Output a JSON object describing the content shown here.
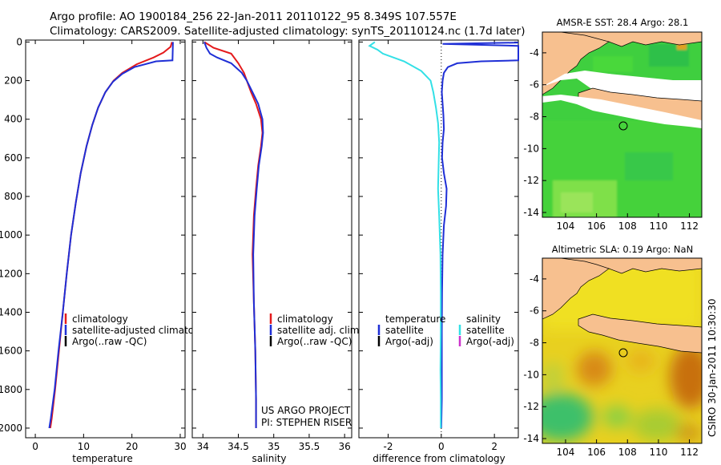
{
  "header": {
    "line1": "Argo profile: AO 1900184_256 22-Jan-2011 20110122_95 8.349S 107.557E",
    "line2": "Climatology: CARS2009. Satellite-adjusted climatology: synTS_20110124.nc (1.7d later)"
  },
  "colors": {
    "climatology": "#e41a1c",
    "satellite": "#1f2fd6",
    "argo": "#000000",
    "salinity_sat": "#33e0e6",
    "salinity_argo": "#cc33cc",
    "land": "#f7c08f"
  },
  "chart_data": [
    {
      "type": "line",
      "id": "temperature",
      "xlabel": "temperature",
      "xlim": [
        -2,
        31
      ],
      "ylim": [
        2050,
        -10
      ],
      "xticks": [
        "0",
        "10",
        "20",
        "30"
      ],
      "xtick_values": [
        0,
        10,
        20,
        30
      ],
      "yticks": [
        "0",
        "200",
        "400",
        "600",
        "800",
        "1000",
        "1200",
        "1400",
        "1600",
        "1800",
        "2000"
      ],
      "ytick_values": [
        0,
        200,
        400,
        600,
        800,
        1000,
        1200,
        1400,
        1600,
        1800,
        2000
      ],
      "legend": [
        "climatology",
        "satellite-adjusted climatology",
        "Argo(..raw -QC)"
      ],
      "series": [
        {
          "name": "climatology",
          "color": "#e41a1c",
          "points": [
            [
              28.3,
              0
            ],
            [
              28.0,
              25
            ],
            [
              26.5,
              55
            ],
            [
              24.5,
              80
            ],
            [
              21,
              115
            ],
            [
              18,
              160
            ],
            [
              16.2,
              200
            ],
            [
              14.5,
              260
            ],
            [
              13,
              340
            ],
            [
              11.8,
              430
            ],
            [
              10.6,
              540
            ],
            [
              9.4,
              680
            ],
            [
              8.4,
              830
            ],
            [
              7.4,
              1000
            ],
            [
              6.5,
              1200
            ],
            [
              5.7,
              1400
            ],
            [
              4.9,
              1600
            ],
            [
              4.1,
              1800
            ],
            [
              3.4,
              1950
            ],
            [
              3.1,
              2000
            ]
          ]
        },
        {
          "name": "satellite-adjusted climatology",
          "color": "#1f2fd6",
          "points": [
            [
              28.5,
              0
            ],
            [
              28.4,
              95
            ],
            [
              25,
              100
            ],
            [
              20.5,
              130
            ],
            [
              18,
              165
            ],
            [
              16.1,
              205
            ],
            [
              14.5,
              260
            ],
            [
              13,
              340
            ],
            [
              11.8,
              430
            ],
            [
              10.6,
              540
            ],
            [
              9.4,
              680
            ],
            [
              8.4,
              830
            ],
            [
              7.4,
              1000
            ],
            [
              6.5,
              1200
            ],
            [
              5.7,
              1400
            ],
            [
              4.8,
              1600
            ],
            [
              4.0,
              1800
            ],
            [
              3.2,
              1950
            ],
            [
              2.9,
              2000
            ]
          ]
        }
      ]
    },
    {
      "type": "line",
      "id": "salinity",
      "xlabel": "salinity",
      "xlim": [
        33.85,
        36.1
      ],
      "ylim": [
        2050,
        -10
      ],
      "xticks": [
        "34",
        "34.5",
        "35",
        "35.5",
        "36"
      ],
      "xtick_values": [
        34,
        34.5,
        35,
        35.5,
        36
      ],
      "legend": [
        "climatology",
        "satellite adj. clim.",
        "Argo(..raw -QC)"
      ],
      "annotations": [
        "US ARGO PROJECT",
        "PI: STEPHEN RISER"
      ],
      "series": [
        {
          "name": "climatology",
          "color": "#e41a1c",
          "points": [
            [
              34.02,
              0
            ],
            [
              34.15,
              30
            ],
            [
              34.4,
              60
            ],
            [
              34.5,
              110
            ],
            [
              34.58,
              160
            ],
            [
              34.62,
              200
            ],
            [
              34.68,
              260
            ],
            [
              34.75,
              320
            ],
            [
              34.82,
              400
            ],
            [
              34.84,
              470
            ],
            [
              34.82,
              540
            ],
            [
              34.78,
              640
            ],
            [
              34.75,
              760
            ],
            [
              34.72,
              900
            ],
            [
              34.7,
              1100
            ],
            [
              34.72,
              1350
            ],
            [
              34.74,
              1600
            ],
            [
              34.75,
              1850
            ],
            [
              34.75,
              2000
            ]
          ]
        },
        {
          "name": "satellite adj. clim.",
          "color": "#1f2fd6",
          "points": [
            [
              34.02,
              0
            ],
            [
              34.05,
              30
            ],
            [
              34.1,
              60
            ],
            [
              34.2,
              80
            ],
            [
              34.4,
              110
            ],
            [
              34.55,
              160
            ],
            [
              34.62,
              200
            ],
            [
              34.7,
              260
            ],
            [
              34.78,
              320
            ],
            [
              34.84,
              400
            ],
            [
              34.85,
              470
            ],
            [
              34.83,
              540
            ],
            [
              34.79,
              640
            ],
            [
              34.76,
              760
            ],
            [
              34.73,
              900
            ],
            [
              34.71,
              1100
            ],
            [
              34.72,
              1350
            ],
            [
              34.74,
              1600
            ],
            [
              34.75,
              1850
            ],
            [
              34.75,
              2000
            ]
          ]
        }
      ]
    },
    {
      "type": "line",
      "id": "difference",
      "xlabel": "difference from climatology",
      "xlim": [
        -3.1,
        2.9
      ],
      "ylim": [
        2050,
        -10
      ],
      "xticks": [
        "-2",
        "0",
        "2"
      ],
      "xtick_values": [
        -2,
        0,
        2
      ],
      "legend_header": [
        "temperature",
        "salinity"
      ],
      "legend_left": [
        "satellite",
        "Argo(-adj)"
      ],
      "legend_right": [
        "satellite",
        "Argo(-adj)"
      ],
      "series": [
        {
          "name": "temperature satellite",
          "color": "#1f2fd6",
          "points": [
            [
              2.9,
              3
            ],
            [
              0.05,
              10
            ],
            [
              2.9,
              20
            ],
            [
              2.9,
              95
            ],
            [
              1.5,
              100
            ],
            [
              0.6,
              110
            ],
            [
              0.25,
              130
            ],
            [
              0.1,
              160
            ],
            [
              0.05,
              200
            ],
            [
              0.02,
              260
            ],
            [
              0.05,
              320
            ],
            [
              0.08,
              380
            ],
            [
              0.1,
              450
            ],
            [
              0.05,
              520
            ],
            [
              0.03,
              600
            ],
            [
              0.1,
              680
            ],
            [
              0.2,
              760
            ],
            [
              0.18,
              850
            ],
            [
              0.1,
              950
            ],
            [
              0.05,
              1100
            ],
            [
              0.03,
              1300
            ],
            [
              0.02,
              1500
            ],
            [
              0.02,
              1700
            ],
            [
              0.02,
              1850
            ],
            [
              0.0,
              2000
            ]
          ]
        },
        {
          "name": "salinity satellite",
          "color": "#33e0e6",
          "points": [
            [
              -2.5,
              0
            ],
            [
              -2.7,
              20
            ],
            [
              -2.4,
              40
            ],
            [
              -2.2,
              60
            ],
            [
              -1.4,
              100
            ],
            [
              -0.75,
              150
            ],
            [
              -0.4,
              200
            ],
            [
              -0.3,
              260
            ],
            [
              -0.2,
              340
            ],
            [
              -0.12,
              420
            ],
            [
              -0.08,
              520
            ],
            [
              -0.1,
              640
            ],
            [
              -0.12,
              760
            ],
            [
              -0.08,
              900
            ],
            [
              -0.03,
              1100
            ],
            [
              -0.02,
              1300
            ],
            [
              -0.02,
              1500
            ],
            [
              -0.03,
              1700
            ],
            [
              -0.02,
              1850
            ],
            [
              -0.02,
              2000
            ]
          ]
        }
      ]
    }
  ],
  "maps": [
    {
      "title": "AMSR-E SST: 28.4 Argo: 28.1",
      "xticks": [
        "104",
        "106",
        "108",
        "110",
        "112"
      ],
      "yticks": [
        "-4",
        "-6",
        "-8",
        "-10",
        "-12",
        "-14"
      ]
    },
    {
      "title": "Altimetric SLA: 0.19 Argo: NaN",
      "xticks": [
        "104",
        "106",
        "108",
        "110",
        "112"
      ],
      "yticks": [
        "-4",
        "-6",
        "-8",
        "-10",
        "-12",
        "-14"
      ]
    }
  ],
  "credit": "CSIRO 30-Jan-2011 10:30:30"
}
